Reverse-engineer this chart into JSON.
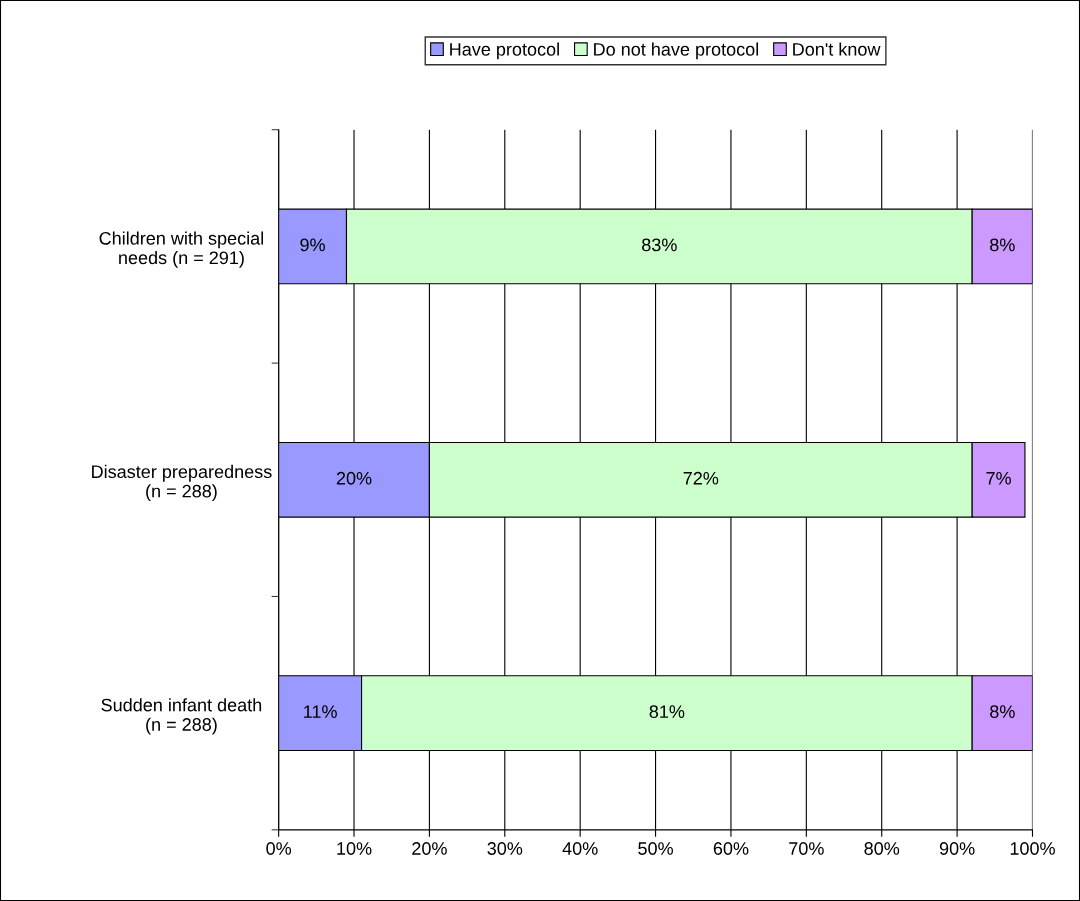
{
  "chart_data": {
    "type": "bar",
    "orientation": "horizontal",
    "stacked": true,
    "categories": [
      "Children with special\nneeds (n = 291)",
      "Disaster preparedness\n(n = 288)",
      "Sudden infant death\n(n = 288)"
    ],
    "series": [
      {
        "name": "Have protocol",
        "color": "#9999ff",
        "values": [
          9,
          20,
          11
        ],
        "value_labels": [
          "9%",
          "20%",
          "11%"
        ]
      },
      {
        "name": "Do not have protocol",
        "color": "#ccffcc",
        "values": [
          83,
          72,
          81
        ],
        "value_labels": [
          "83%",
          "72%",
          "81%"
        ]
      },
      {
        "name": "Don't know",
        "color": "#cc99ff",
        "values": [
          8,
          7,
          8
        ],
        "value_labels": [
          "8%",
          "7%",
          "8%"
        ]
      }
    ],
    "xlim": [
      0,
      100
    ],
    "xticks": [
      {
        "value": 0,
        "label": "0%"
      },
      {
        "value": 10,
        "label": "10%"
      },
      {
        "value": 20,
        "label": "20%"
      },
      {
        "value": 30,
        "label": "30%"
      },
      {
        "value": 40,
        "label": "40%"
      },
      {
        "value": 50,
        "label": "50%"
      },
      {
        "value": 60,
        "label": "60%"
      },
      {
        "value": 70,
        "label": "70%"
      },
      {
        "value": 80,
        "label": "80%"
      },
      {
        "value": 90,
        "label": "90%"
      },
      {
        "value": 100,
        "label": "100%"
      }
    ],
    "grid": "x",
    "legend": "top"
  }
}
